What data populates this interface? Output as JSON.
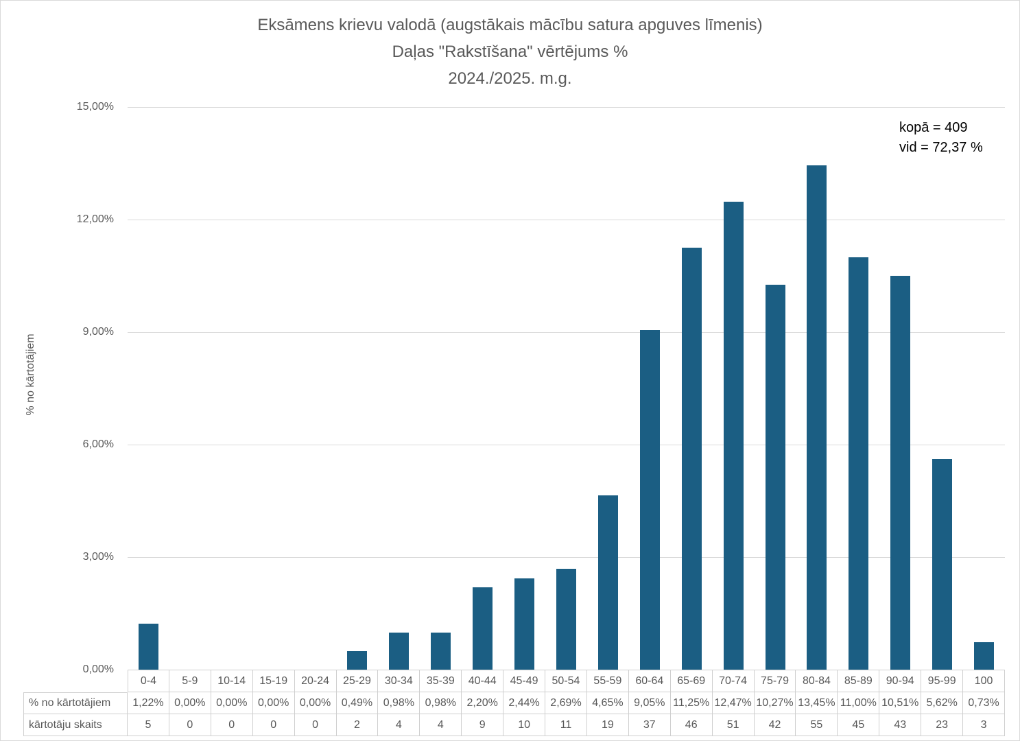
{
  "title": {
    "line1": "Eksāmens krievu valodā (augstākais mācību satura apguves līmenis)",
    "line2": "Daļas \"Rakstīšana\" vērtējums %",
    "line3": "2024./2025. m.g."
  },
  "annotation": {
    "total": "kopā = 409",
    "average": "vid = 72,37 %"
  },
  "y_axis": {
    "label": "% no kārtotājiem",
    "ticks": [
      "15,00%",
      "12,00%",
      "9,00%",
      "6,00%",
      "3,00%",
      "0,00%"
    ]
  },
  "table": {
    "percent_row_header": "% no kārtotājiem",
    "count_row_header": "kārtotāju skaits"
  },
  "colors": {
    "bar": "#1B5E83",
    "gridline": "#D9D9D9",
    "table_border": "#CFCFCF",
    "text_gray": "#595959",
    "annotation_text": "#000000"
  },
  "chart_data": {
    "type": "bar",
    "title": "Eksāmens krievu valodā (augstākais mācību satura apguves līmenis) Daļas \"Rakstīšana\" vērtējums % 2024./2025. m.g.",
    "xlabel": "",
    "ylabel": "% no kārtotājiem",
    "ylim": [
      0,
      15
    ],
    "grid": true,
    "legend": "none",
    "categories": [
      "0-4",
      "5-9",
      "10-14",
      "15-19",
      "20-24",
      "25-29",
      "30-34",
      "35-39",
      "40-44",
      "45-49",
      "50-54",
      "55-59",
      "60-64",
      "65-69",
      "70-74",
      "75-79",
      "80-84",
      "85-89",
      "90-94",
      "95-99",
      "100"
    ],
    "series": [
      {
        "name": "% no kārtotājiem",
        "values": [
          1.22,
          0.0,
          0.0,
          0.0,
          0.0,
          0.49,
          0.98,
          0.98,
          2.2,
          2.44,
          2.69,
          4.65,
          9.05,
          11.25,
          12.47,
          10.27,
          13.45,
          11.0,
          10.51,
          5.62,
          0.73
        ],
        "display": [
          "1,22%",
          "0,00%",
          "0,00%",
          "0,00%",
          "0,00%",
          "0,49%",
          "0,98%",
          "0,98%",
          "2,20%",
          "2,44%",
          "2,69%",
          "4,65%",
          "9,05%",
          "11,25%",
          "12,47%",
          "10,27%",
          "13,45%",
          "11,00%",
          "10,51%",
          "5,62%",
          "0,73%"
        ]
      },
      {
        "name": "kārtotāju skaits",
        "values": [
          5,
          0,
          0,
          0,
          0,
          2,
          4,
          4,
          9,
          10,
          11,
          19,
          37,
          46,
          51,
          42,
          55,
          45,
          43,
          23,
          3
        ]
      }
    ],
    "annotations": [
      "kopā = 409",
      "vid = 72,37 %"
    ]
  }
}
